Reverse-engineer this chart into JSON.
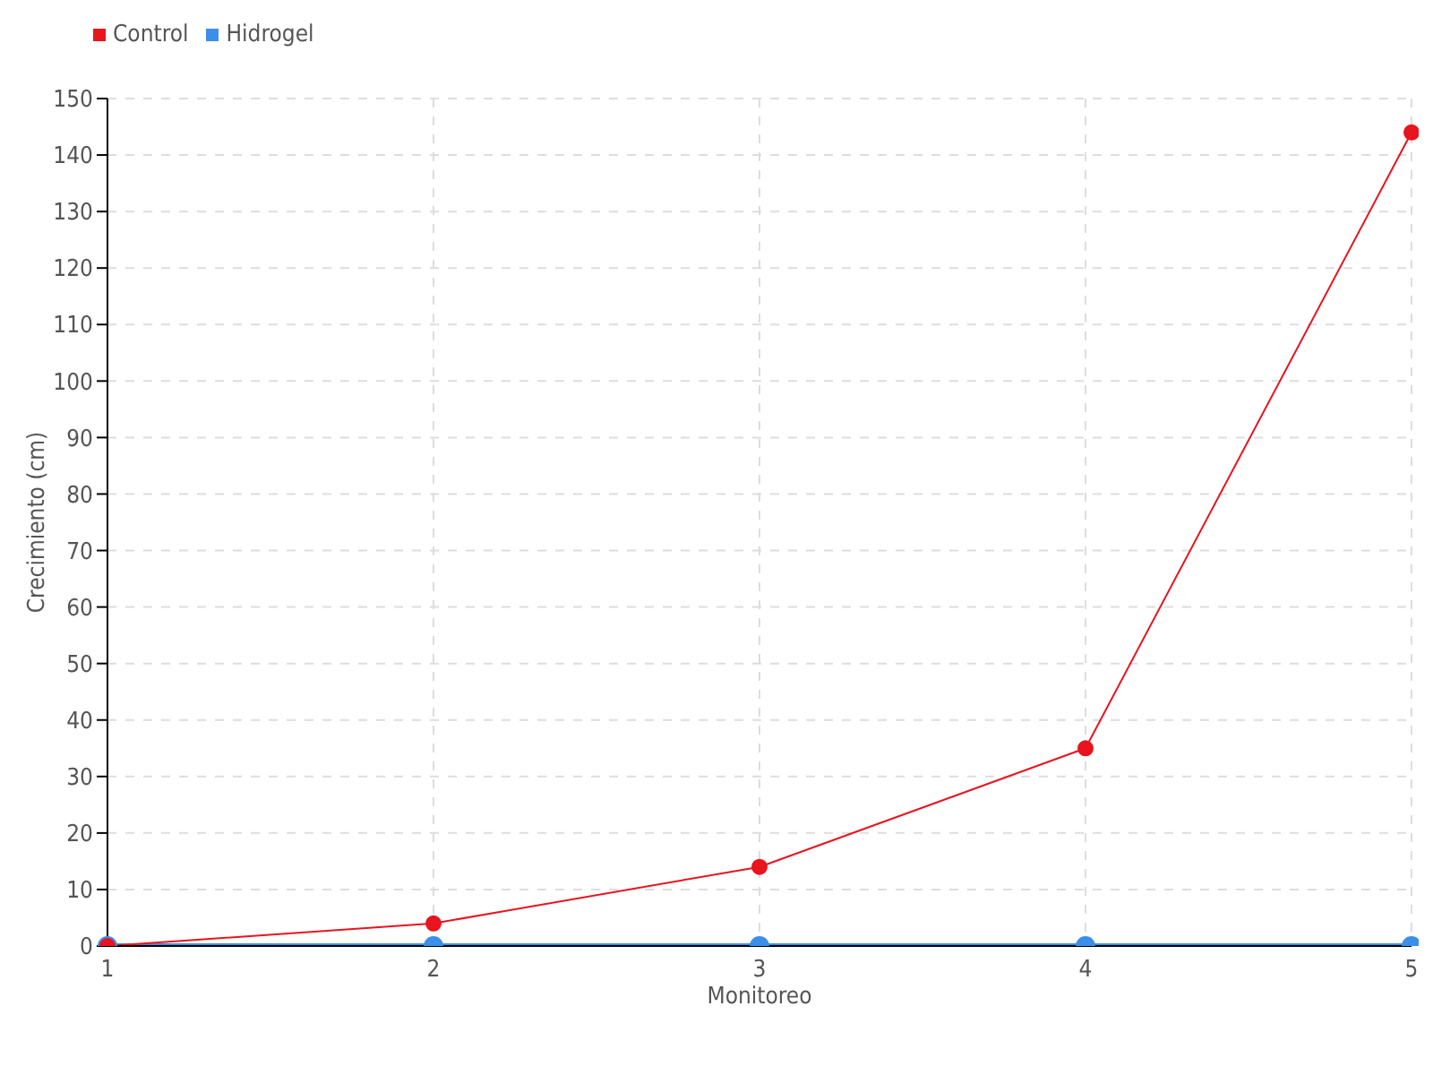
{
  "chart_data": {
    "type": "line",
    "xlabel": "Monitoreo",
    "ylabel": "Crecimiento (cm)",
    "categories": [
      "1",
      "2",
      "3",
      "4",
      "5"
    ],
    "series": [
      {
        "name": "Hidrogel",
        "color": "#3c8fe8",
        "values": [
          0,
          0,
          0,
          0,
          0
        ]
      },
      {
        "name": "Control",
        "color": "#e8141e",
        "values": [
          0,
          4,
          14,
          35,
          144
        ]
      }
    ],
    "ylim": [
      0,
      150
    ],
    "yticks": [
      0,
      10,
      20,
      30,
      40,
      50,
      60,
      70,
      80,
      90,
      100,
      110,
      120,
      130,
      140,
      150
    ],
    "grid": true,
    "legend": "top left",
    "marker": "circle",
    "line_style": "solid"
  }
}
